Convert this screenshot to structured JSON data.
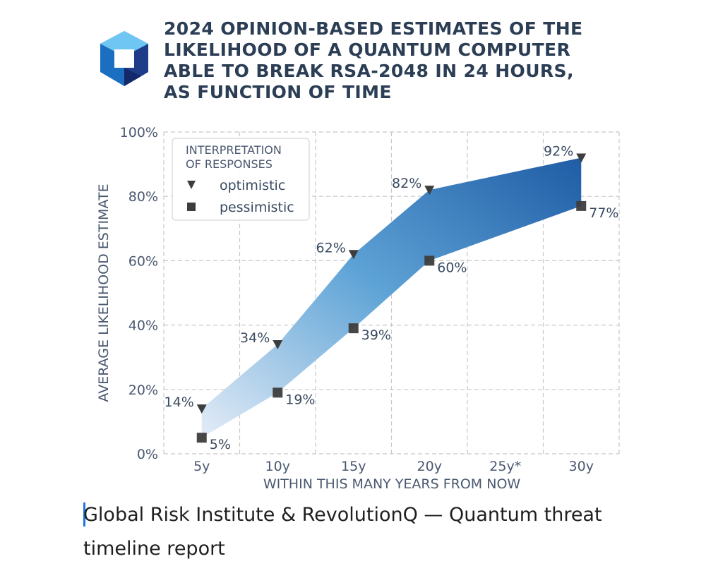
{
  "title_lines": [
    "2024 OPINION-BASED ESTIMATES OF THE",
    "LIKELIHOOD OF A QUANTUM COMPUTER",
    "ABLE TO BREAK RSA-2048 IN 24 HOURS,",
    "AS FUNCTION OF TIME"
  ],
  "caption": "Global Risk Institute & RevolutionQ — Quantum threat timeline report",
  "logo": "revolutionq-cube-icon",
  "colors": {
    "title": "#2c3e55",
    "axis_text": "#4a5870",
    "band_dark": "#2463a8",
    "band_mid": "#4f97cf",
    "band_light": "#e4ecf7",
    "marker": "#3d3d3d",
    "grid": "#c8c8c8"
  },
  "chart_data": {
    "type": "area",
    "xlabel": "WITHIN THIS MANY YEARS FROM NOW",
    "ylabel": "AVERAGE LIKELIHOOD ESTIMATE",
    "categories": [
      "5y",
      "10y",
      "15y",
      "20y",
      "25y*",
      "30y"
    ],
    "x": [
      5,
      10,
      15,
      20,
      25,
      30
    ],
    "xlim": [
      2.5,
      32.5
    ],
    "ylim": [
      0,
      100
    ],
    "yticks": [
      0,
      20,
      40,
      60,
      80,
      100
    ],
    "ytick_labels": [
      "0%",
      "20%",
      "40%",
      "60%",
      "80%",
      "100%"
    ],
    "grid": true,
    "legend": {
      "title_lines": [
        "INTERPRETATION",
        "OF RESPONSES"
      ],
      "placement": "top-left"
    },
    "series": [
      {
        "name": "optimistic",
        "marker": "triangle-down",
        "x": [
          5,
          10,
          15,
          20,
          30
        ],
        "values": [
          14,
          34,
          62,
          82,
          92
        ],
        "labels": [
          "14%",
          "34%",
          "62%",
          "82%",
          "92%"
        ]
      },
      {
        "name": "pessimistic",
        "marker": "square",
        "x": [
          5,
          10,
          15,
          20,
          30
        ],
        "values": [
          5,
          19,
          39,
          60,
          77
        ],
        "labels": [
          "5%",
          "19%",
          "39%",
          "60%",
          "77%"
        ]
      }
    ]
  }
}
